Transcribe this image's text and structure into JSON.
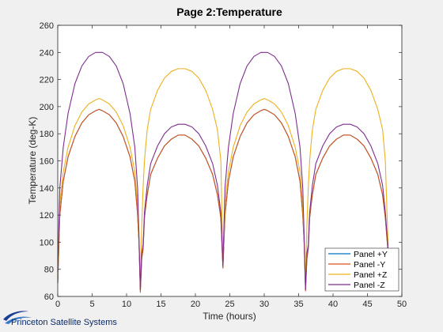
{
  "chart_data": {
    "type": "line",
    "title": "Page 2:Temperature",
    "xlabel": "Time (hours)",
    "ylabel": "Temperature (deg-K)",
    "xlim": [
      0,
      50
    ],
    "ylim": [
      60,
      260
    ],
    "xticks": [
      0,
      5,
      10,
      15,
      20,
      25,
      30,
      35,
      40,
      45,
      50
    ],
    "yticks": [
      60,
      80,
      100,
      120,
      140,
      160,
      180,
      200,
      220,
      240,
      260
    ],
    "grid": false,
    "legend_position": "bottom-right",
    "series": [
      {
        "name": "Panel +Y",
        "color": "#0072bd",
        "x": [
          0,
          0.3,
          0.8,
          1.5,
          2.5,
          3.5,
          4.5,
          5.5,
          6,
          6.5,
          7.5,
          8.5,
          9.5,
          10.5,
          11.2,
          11.6,
          11.8,
          12,
          12.2,
          12.4,
          12.6,
          12.8,
          13,
          13.5,
          14.5,
          15.5,
          16.5,
          17.5,
          18,
          18.5,
          19.5,
          20.5,
          21.5,
          22.5,
          23.2,
          23.7,
          24,
          24.3,
          24.8,
          25.5,
          26.5,
          27.5,
          28.5,
          29.5,
          30,
          30.5,
          31.5,
          32.5,
          33.5,
          34.5,
          35.2,
          35.6,
          35.8,
          36,
          36.2,
          36.4,
          36.6,
          36.8,
          37,
          37.5,
          38.5,
          39.5,
          40.5,
          41.5,
          42,
          42.5,
          43.5,
          44.5,
          45.5,
          46.5,
          47.2,
          47.6,
          48
        ],
        "y": [
          70,
          120,
          145,
          163,
          178,
          188,
          194,
          197,
          198,
          197,
          194,
          188,
          178,
          163,
          145,
          120,
          100,
          65,
          88,
          95,
          118,
          127,
          135,
          150,
          162,
          171,
          176,
          179,
          179,
          179,
          176,
          171,
          162,
          150,
          135,
          118,
          81,
          120,
          145,
          163,
          178,
          188,
          194,
          197,
          198,
          197,
          194,
          188,
          178,
          163,
          145,
          120,
          100,
          65,
          88,
          95,
          118,
          127,
          135,
          150,
          162,
          171,
          176,
          179,
          179,
          179,
          176,
          171,
          162,
          150,
          135,
          118,
          93
        ]
      },
      {
        "name": "Panel -Y",
        "color": "#d95319",
        "x": [
          0,
          0.3,
          0.8,
          1.5,
          2.5,
          3.5,
          4.5,
          5.5,
          6,
          6.5,
          7.5,
          8.5,
          9.5,
          10.5,
          11.2,
          11.6,
          11.8,
          12,
          12.2,
          12.4,
          12.6,
          12.8,
          13,
          13.5,
          14.5,
          15.5,
          16.5,
          17.5,
          18,
          18.5,
          19.5,
          20.5,
          21.5,
          22.5,
          23.2,
          23.7,
          24,
          24.3,
          24.8,
          25.5,
          26.5,
          27.5,
          28.5,
          29.5,
          30,
          30.5,
          31.5,
          32.5,
          33.5,
          34.5,
          35.2,
          35.6,
          35.8,
          36,
          36.2,
          36.4,
          36.6,
          36.8,
          37,
          37.5,
          38.5,
          39.5,
          40.5,
          41.5,
          42,
          42.5,
          43.5,
          44.5,
          45.5,
          46.5,
          47.2,
          47.6,
          48
        ],
        "y": [
          70,
          120,
          145,
          163,
          178,
          188,
          194,
          197,
          198,
          197,
          194,
          188,
          178,
          163,
          145,
          120,
          100,
          63,
          88,
          95,
          118,
          127,
          135,
          150,
          162,
          171,
          176,
          179,
          179,
          179,
          176,
          171,
          162,
          150,
          135,
          118,
          81,
          120,
          145,
          163,
          178,
          188,
          194,
          197,
          198,
          197,
          194,
          188,
          178,
          163,
          145,
          120,
          100,
          64,
          88,
          95,
          118,
          127,
          135,
          150,
          162,
          171,
          176,
          179,
          179,
          179,
          176,
          171,
          162,
          150,
          135,
          118,
          92
        ]
      },
      {
        "name": "Panel +Z",
        "color": "#edb120",
        "x": [
          0,
          0.3,
          0.8,
          1.5,
          2.5,
          3.5,
          4.5,
          5.5,
          6,
          6.5,
          7.5,
          8.5,
          9.5,
          10.5,
          11.2,
          11.6,
          11.8,
          12,
          12.2,
          12.4,
          12.6,
          12.8,
          13,
          13.5,
          14.5,
          15.5,
          16.5,
          17.5,
          18,
          18.5,
          19.5,
          20.5,
          21.5,
          22.5,
          23.2,
          23.7,
          24,
          24.3,
          24.8,
          25.5,
          26.5,
          27.5,
          28.5,
          29.5,
          30,
          30.5,
          31.5,
          32.5,
          33.5,
          34.5,
          35.2,
          35.6,
          35.8,
          36,
          36.2,
          36.4,
          36.6,
          36.8,
          37,
          37.5,
          38.5,
          39.5,
          40.5,
          41.5,
          42,
          42.5,
          43.5,
          44.5,
          45.5,
          46.5,
          47.2,
          47.6,
          48
        ],
        "y": [
          75,
          128,
          152,
          170,
          186,
          196,
          202,
          205,
          206,
          205,
          202,
          196,
          186,
          170,
          152,
          128,
          102,
          72,
          112,
          140,
          160,
          172,
          183,
          198,
          212,
          221,
          226,
          228,
          228,
          228,
          226,
          221,
          212,
          198,
          183,
          160,
          84,
          128,
          152,
          170,
          186,
          196,
          202,
          205,
          206,
          205,
          202,
          196,
          186,
          170,
          152,
          128,
          102,
          72,
          112,
          140,
          160,
          172,
          183,
          198,
          212,
          221,
          226,
          228,
          228,
          228,
          226,
          221,
          212,
          198,
          183,
          160,
          97
        ]
      },
      {
        "name": "Panel -Z",
        "color": "#7e2f8e",
        "x": [
          0,
          0.3,
          0.8,
          1.5,
          2.5,
          3.5,
          4.5,
          5.5,
          6,
          6.5,
          7.5,
          8.5,
          9.5,
          10.5,
          11.2,
          11.6,
          11.8,
          12,
          12.2,
          12.4,
          12.6,
          12.8,
          13,
          13.5,
          14.5,
          15.5,
          16.5,
          17.5,
          18,
          18.5,
          19.5,
          20.5,
          21.5,
          22.5,
          23.2,
          23.7,
          24,
          24.3,
          24.8,
          25.5,
          26.5,
          27.5,
          28.5,
          29.5,
          30,
          30.5,
          31.5,
          32.5,
          33.5,
          34.5,
          35.2,
          35.6,
          35.8,
          36,
          36.2,
          36.4,
          36.6,
          36.8,
          37,
          37.5,
          38.5,
          39.5,
          40.5,
          41.5,
          42,
          42.5,
          43.5,
          44.5,
          45.5,
          46.5,
          47.2,
          47.6,
          48
        ],
        "y": [
          78,
          140,
          170,
          195,
          217,
          230,
          237,
          240,
          240,
          240,
          237,
          230,
          217,
          195,
          170,
          140,
          105,
          65,
          92,
          98,
          122,
          132,
          142,
          158,
          171,
          180,
          185,
          187,
          187,
          187,
          185,
          180,
          171,
          158,
          142,
          122,
          83,
          140,
          170,
          195,
          217,
          230,
          237,
          240,
          240,
          240,
          237,
          230,
          217,
          195,
          170,
          140,
          105,
          65,
          92,
          98,
          122,
          132,
          142,
          158,
          171,
          180,
          185,
          187,
          187,
          187,
          185,
          180,
          171,
          158,
          142,
          122,
          95
        ]
      }
    ]
  },
  "logo": {
    "text": "Princeton Satellite Systems"
  }
}
